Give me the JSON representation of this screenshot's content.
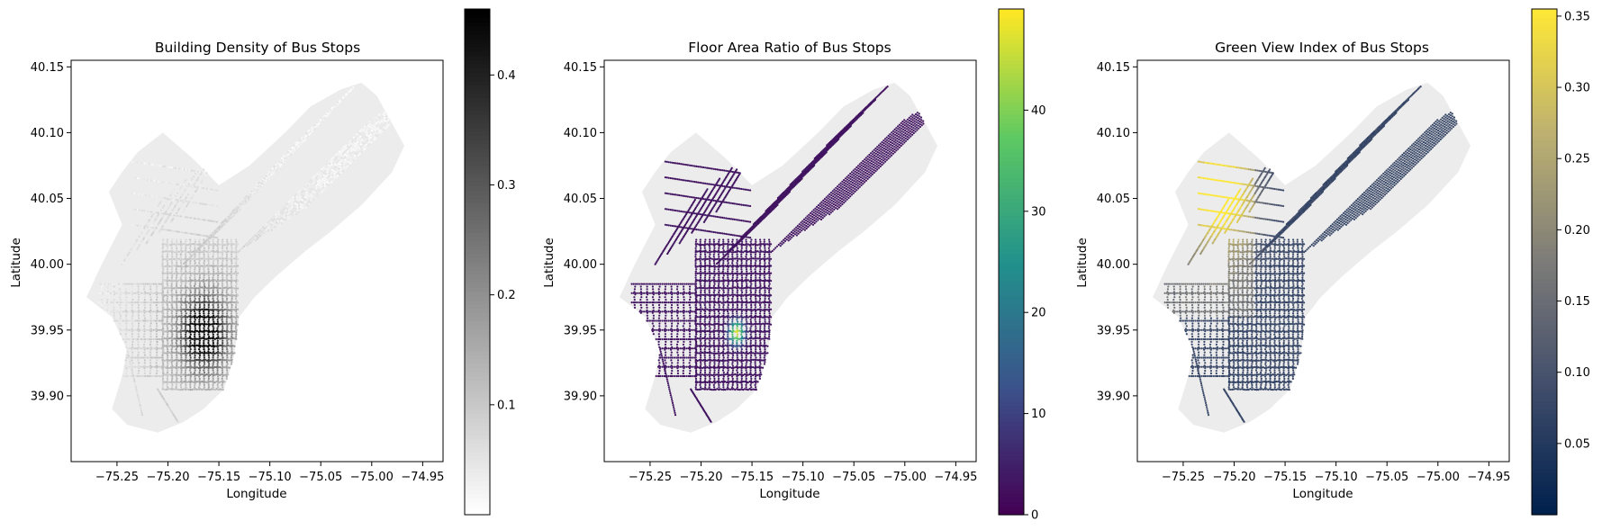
{
  "chart_data": [
    {
      "type": "scatter",
      "title": "Building Density of Bus Stops",
      "xlabel": "Longitude",
      "ylabel": "Latitude",
      "xlim": [
        -75.295,
        -74.93
      ],
      "ylim": [
        39.85,
        40.155
      ],
      "xticks": [
        -75.25,
        -75.2,
        -75.15,
        -75.1,
        -75.05,
        -75.0,
        -74.95
      ],
      "xtick_labels": [
        "−75.25",
        "−75.20",
        "−75.15",
        "−75.10",
        "−75.05",
        "−75.00",
        "−74.95"
      ],
      "yticks": [
        39.9,
        39.95,
        40.0,
        40.05,
        40.1,
        40.15
      ],
      "ytick_labels": [
        "39.90",
        "39.95",
        "40.00",
        "40.05",
        "40.10",
        "40.15"
      ],
      "colormap": "Greys",
      "colorbar": {
        "min": 0.0,
        "max": 0.46,
        "ticks": [
          0.1,
          0.2,
          0.3,
          0.4
        ],
        "tick_labels": [
          "0.1",
          "0.2",
          "0.3",
          "0.4"
        ]
      },
      "hotspot": {
        "lon": -75.165,
        "lat": 39.945,
        "peak": 0.44,
        "note_value_range": [
          0.0,
          0.45
        ]
      }
    },
    {
      "type": "scatter",
      "title": "Floor Area Ratio of Bus Stops",
      "xlabel": "Longitude",
      "ylabel": "Latitude",
      "xlim": [
        -75.295,
        -74.93
      ],
      "ylim": [
        39.85,
        40.155
      ],
      "xticks": [
        -75.25,
        -75.2,
        -75.15,
        -75.1,
        -75.05,
        -75.0,
        -74.95
      ],
      "xtick_labels": [
        "−75.25",
        "−75.20",
        "−75.15",
        "−75.10",
        "−75.05",
        "−75.00",
        "−74.95"
      ],
      "yticks": [
        39.9,
        39.95,
        40.0,
        40.05,
        40.1,
        40.15
      ],
      "ytick_labels": [
        "39.90",
        "39.95",
        "40.00",
        "40.05",
        "40.10",
        "40.15"
      ],
      "colormap": "viridis",
      "colorbar": {
        "min": 0,
        "max": 50,
        "ticks": [
          0,
          10,
          20,
          30,
          40
        ],
        "tick_labels": [
          "0",
          "10",
          "20",
          "30",
          "40"
        ]
      },
      "hotspot": {
        "lon": -75.167,
        "lat": 39.951,
        "peak": 45
      }
    },
    {
      "type": "scatter",
      "title": "Green View Index of Bus Stops",
      "xlabel": "Longitude",
      "ylabel": "Latitude",
      "xlim": [
        -75.295,
        -74.93
      ],
      "ylim": [
        39.85,
        40.155
      ],
      "xticks": [
        -75.25,
        -75.2,
        -75.15,
        -75.1,
        -75.05,
        -75.0,
        -74.95
      ],
      "xtick_labels": [
        "−75.25",
        "−75.20",
        "−75.15",
        "−75.10",
        "−75.05",
        "−75.00",
        "−74.95"
      ],
      "yticks": [
        39.9,
        39.95,
        40.0,
        40.05,
        40.1,
        40.15
      ],
      "ytick_labels": [
        "39.90",
        "39.95",
        "40.00",
        "40.05",
        "40.10",
        "40.15"
      ],
      "colormap": "cividis",
      "colorbar": {
        "min": 0.0,
        "max": 0.355,
        "ticks": [
          0.05,
          0.1,
          0.15,
          0.2,
          0.25,
          0.3,
          0.35
        ],
        "tick_labels": [
          "0.05",
          "0.10",
          "0.15",
          "0.20",
          "0.25",
          "0.30",
          "0.35"
        ]
      },
      "hotspot": {
        "lon": -75.215,
        "lat": 40.07,
        "peak": 0.33
      }
    }
  ],
  "basemap_color": "#ececec"
}
